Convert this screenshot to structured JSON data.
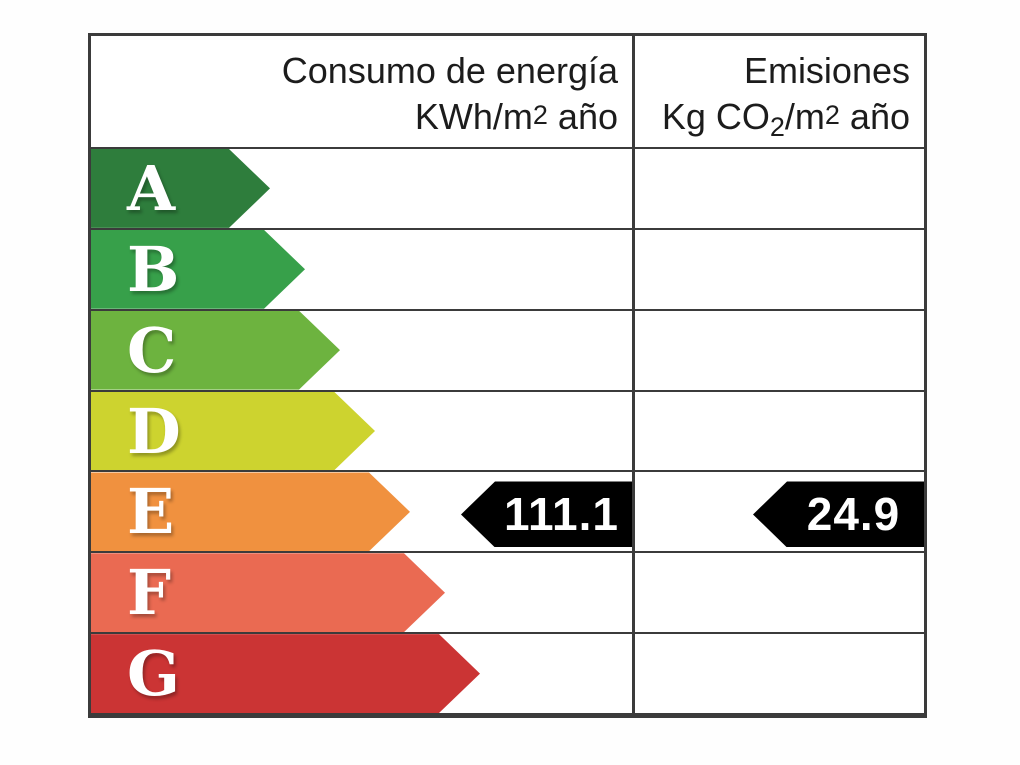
{
  "header": {
    "consumption": {
      "line1": "Consumo de energía",
      "unit_prefix": "KWh/m",
      "unit_sup": "2",
      "unit_suffix": " año"
    },
    "emissions": {
      "line1": "Emisiones",
      "unit_prefix": "Kg CO",
      "unit_sub": "2",
      "unit_mid": "/m",
      "unit_sup": "2",
      "unit_suffix": " año"
    }
  },
  "chart_data": {
    "type": "bar",
    "description": "Energy efficiency certificate rating scale (Spain)",
    "columns": [
      "Consumo de energía KWh/m2 año",
      "Emisiones Kg CO2/m2 año"
    ],
    "categories": [
      "A",
      "B",
      "C",
      "D",
      "E",
      "F",
      "G"
    ],
    "ratings": [
      {
        "grade": "A",
        "color": "#2e7d3c"
      },
      {
        "grade": "B",
        "color": "#37a04a"
      },
      {
        "grade": "C",
        "color": "#6db33f"
      },
      {
        "grade": "D",
        "color": "#cdd32f"
      },
      {
        "grade": "E",
        "color": "#f0913f"
      },
      {
        "grade": "F",
        "color": "#ea6a52"
      },
      {
        "grade": "G",
        "color": "#cb3434"
      }
    ],
    "result": {
      "grade": "E",
      "consumption_kwh_m2_year": 111.1,
      "emissions_kgco2_m2_year": 24.9,
      "consumption_label": "111.1",
      "emissions_label": "24.9"
    },
    "colors": {
      "grid": "#3b3b3b",
      "marker_background": "#000000",
      "marker_text": "#ffffff"
    },
    "legend_position": "none",
    "grid": true
  }
}
